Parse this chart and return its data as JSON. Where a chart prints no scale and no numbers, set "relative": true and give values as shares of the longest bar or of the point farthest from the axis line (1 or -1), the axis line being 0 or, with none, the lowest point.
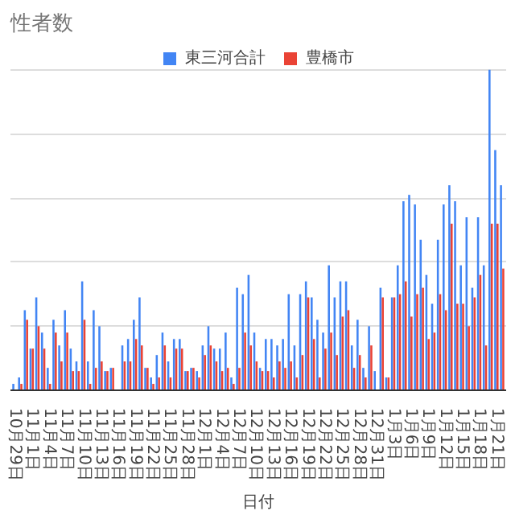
{
  "chart_data": {
    "type": "bar",
    "title": "性者数",
    "xlabel": "日付",
    "relative": true,
    "grid": "y",
    "legend": "top",
    "categories": [
      "10月29日",
      null,
      null,
      "11月1日",
      null,
      null,
      "11月4日",
      null,
      null,
      "11月7日",
      null,
      null,
      "11月10日",
      null,
      null,
      "11月13日",
      null,
      null,
      "11月16日",
      null,
      null,
      "11月19日",
      null,
      null,
      "11月22日",
      null,
      null,
      "11月25日",
      null,
      null,
      "11月28日",
      null,
      null,
      "12月1日",
      null,
      null,
      "12月4日",
      null,
      null,
      "12月7日",
      null,
      null,
      "12月10日",
      null,
      null,
      "12月13日",
      null,
      null,
      "12月16日",
      null,
      null,
      "12月19日",
      null,
      null,
      "12月22日",
      null,
      null,
      "12月25日",
      null,
      null,
      "12月28日",
      null,
      null,
      "12月31日",
      null,
      null,
      "1月3日",
      null,
      null,
      "1月6日",
      null,
      null,
      "1月9日",
      null,
      null,
      "1月12日",
      null,
      null,
      "1月15日",
      null,
      null,
      "1月18日",
      null,
      null,
      "1月21日",
      null
    ],
    "series": [
      {
        "name": "東三河合計",
        "color": "#4285f4",
        "values": [
          0.02,
          0.04,
          0.25,
          0.13,
          0.29,
          0.18,
          0.07,
          0.22,
          0.14,
          0.25,
          0.13,
          0.09,
          0.34,
          0.09,
          0.25,
          0.2,
          0.06,
          0.07,
          0,
          0.14,
          0.16,
          0.22,
          0.29,
          0.07,
          0.04,
          0.11,
          0.18,
          0.09,
          0.16,
          0.16,
          0.06,
          0.07,
          0.06,
          0.14,
          0.2,
          0.13,
          0.13,
          0.18,
          0.04,
          0.32,
          0.3,
          0.36,
          0.18,
          0.07,
          0.16,
          0.16,
          0.14,
          0.16,
          0.3,
          0.14,
          0.3,
          0.34,
          0.29,
          0.22,
          0.18,
          0.39,
          0.29,
          0.34,
          0.34,
          0.14,
          0.22,
          0.07,
          0.2,
          0.06,
          0.32,
          0.04,
          0.29,
          0.39,
          0.59,
          0.61,
          0.58,
          0.47,
          0.36,
          0.27,
          0.47,
          0.58,
          0.64,
          0.59,
          0.39,
          0.54,
          0.32,
          0.54,
          0.39,
          1,
          0.75,
          0.64
        ]
      },
      {
        "name": "豊橋市",
        "color": "#ea4335",
        "values": [
          0,
          0.02,
          0.22,
          0.13,
          0.2,
          0.13,
          0.02,
          0.18,
          0.09,
          0.18,
          0.06,
          0.06,
          0.22,
          0.02,
          0.07,
          0.09,
          0.06,
          0.07,
          0,
          0.09,
          0.09,
          0.16,
          0.14,
          0.07,
          0.02,
          0.04,
          0.14,
          0.04,
          0.13,
          0.13,
          0.06,
          0.07,
          0.04,
          0.11,
          0.14,
          0.09,
          0.06,
          0.07,
          0.02,
          0.07,
          0.18,
          0.14,
          0.09,
          0.06,
          0.06,
          0.04,
          0.09,
          0.07,
          0.09,
          0.04,
          0.11,
          0.29,
          0.16,
          0.04,
          0.13,
          0.18,
          0.11,
          0.23,
          0.25,
          0.07,
          0.11,
          0.04,
          0.14,
          0,
          0.29,
          0.04,
          0.29,
          0.3,
          0.34,
          0.23,
          0.3,
          0.32,
          0.16,
          0.18,
          0.3,
          0.25,
          0.52,
          0.27,
          0.27,
          0.2,
          0.29,
          0.36,
          0.14,
          0.52,
          0.52,
          0.38
        ]
      }
    ]
  }
}
